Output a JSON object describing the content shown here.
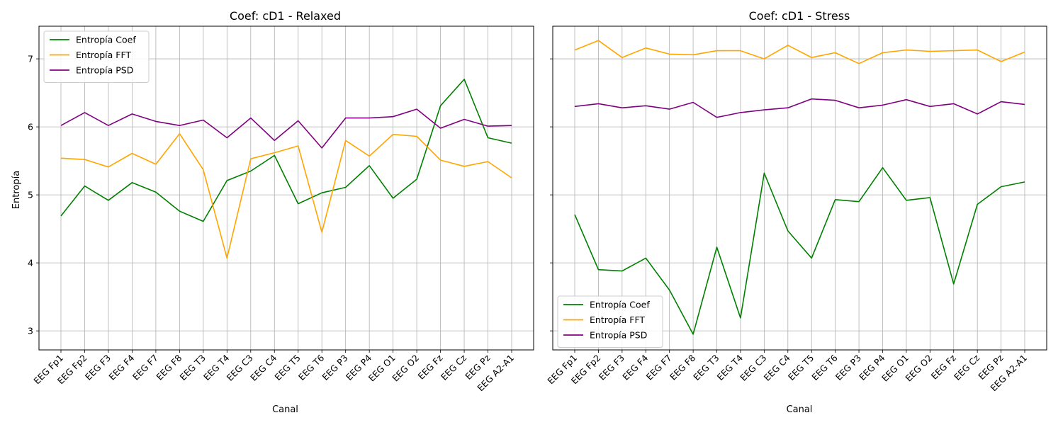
{
  "chart_data": [
    {
      "type": "line",
      "title": "Coef: cD1 - Relaxed",
      "xlabel": "Canal",
      "ylabel": "Entropía",
      "ylim": [
        2.72,
        7.48
      ],
      "yticks": [
        3,
        4,
        5,
        6,
        7
      ],
      "grid": true,
      "legend": "upper-left",
      "categories": [
        "EEG Fp1",
        "EEG Fp2",
        "EEG F3",
        "EEG F4",
        "EEG F7",
        "EEG F8",
        "EEG T3",
        "EEG T4",
        "EEG C3",
        "EEG C4",
        "EEG T5",
        "EEG T6",
        "EEG P3",
        "EEG P4",
        "EEG O1",
        "EEG O2",
        "EEG Fz",
        "EEG Cz",
        "EEG Pz",
        "EEG A2-A1"
      ],
      "series": [
        {
          "name": "Entropía Coef",
          "color": "#008000",
          "values": [
            4.69,
            5.13,
            4.92,
            5.18,
            5.04,
            4.76,
            4.61,
            5.21,
            5.35,
            5.58,
            4.87,
            5.03,
            5.11,
            5.43,
            4.95,
            5.23,
            6.31,
            6.7,
            5.84,
            5.76
          ]
        },
        {
          "name": "Entropía FFT",
          "color": "#FFA500",
          "values": [
            5.54,
            5.52,
            5.41,
            5.61,
            5.45,
            5.9,
            5.37,
            4.07,
            5.53,
            5.62,
            5.72,
            4.45,
            5.8,
            5.57,
            5.89,
            5.86,
            5.51,
            5.42,
            5.49,
            5.25
          ]
        },
        {
          "name": "Entropía PSD",
          "color": "#800080",
          "values": [
            6.02,
            6.21,
            6.02,
            6.19,
            6.08,
            6.02,
            6.1,
            5.84,
            6.13,
            5.8,
            6.09,
            5.69,
            6.13,
            6.13,
            6.15,
            6.26,
            5.98,
            6.11,
            6.01,
            6.02
          ]
        }
      ]
    },
    {
      "type": "line",
      "title": "Coef: cD1 - Stress",
      "xlabel": "Canal",
      "ylabel": "",
      "ylim": [
        2.72,
        7.48
      ],
      "yticks": [
        3,
        4,
        5,
        6,
        7
      ],
      "grid": true,
      "legend": "lower-left",
      "categories": [
        "EEG Fp1",
        "EEG Fp2",
        "EEG F3",
        "EEG F4",
        "EEG F7",
        "EEG F8",
        "EEG T3",
        "EEG T4",
        "EEG C3",
        "EEG C4",
        "EEG T5",
        "EEG T6",
        "EEG P3",
        "EEG P4",
        "EEG O1",
        "EEG O2",
        "EEG Fz",
        "EEG Cz",
        "EEG Pz",
        "EEG A2-A1"
      ],
      "series": [
        {
          "name": "Entropía Coef",
          "color": "#008000",
          "values": [
            4.71,
            3.9,
            3.88,
            4.07,
            3.6,
            2.95,
            4.23,
            3.19,
            5.32,
            4.47,
            4.07,
            4.93,
            4.9,
            5.4,
            4.92,
            4.96,
            3.69,
            4.86,
            5.12,
            5.19
          ]
        },
        {
          "name": "Entropía FFT",
          "color": "#FFA500",
          "values": [
            7.13,
            7.27,
            7.02,
            7.16,
            7.07,
            7.06,
            7.12,
            7.12,
            7.0,
            7.2,
            7.02,
            7.09,
            6.93,
            7.09,
            7.13,
            7.11,
            7.12,
            7.13,
            6.96,
            7.1
          ]
        },
        {
          "name": "Entropía PSD",
          "color": "#800080",
          "values": [
            6.3,
            6.34,
            6.28,
            6.31,
            6.26,
            6.36,
            6.14,
            6.21,
            6.25,
            6.28,
            6.41,
            6.39,
            6.28,
            6.32,
            6.4,
            6.3,
            6.34,
            6.19,
            6.37,
            6.33
          ]
        }
      ]
    }
  ]
}
